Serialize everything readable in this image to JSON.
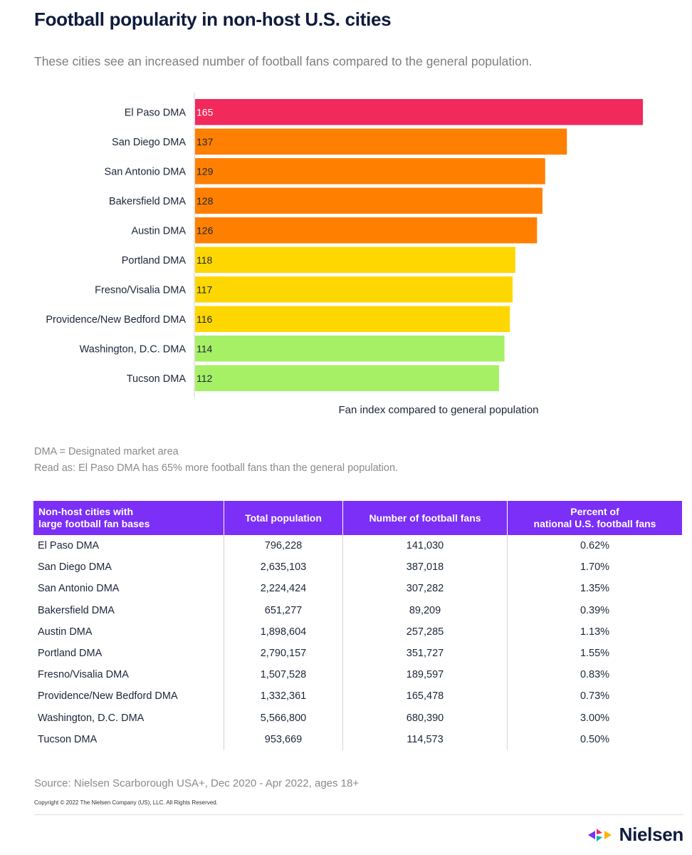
{
  "title": "Football popularity in non-host U.S. cities",
  "subtitle": "These cities see an increased number of football fans compared to the general population.",
  "chart_data": {
    "type": "bar",
    "orientation": "horizontal",
    "categories": [
      "El Paso DMA",
      "San Diego DMA",
      "San Antonio DMA",
      "Bakersfield DMA",
      "Austin DMA",
      "Portland DMA",
      "Fresno/Visalia DMA",
      "Providence/New Bedford DMA",
      "Washington, D.C. DMA",
      "Tucson DMA"
    ],
    "values": [
      165,
      137,
      129,
      128,
      126,
      118,
      117,
      116,
      114,
      112
    ],
    "bar_colors": [
      "#f2295b",
      "#ff7f00",
      "#ff7f00",
      "#ff7f00",
      "#ff7f00",
      "#ffd700",
      "#ffd700",
      "#ffd700",
      "#a6f066",
      "#a6f066"
    ],
    "label_colors": [
      "#ffffff",
      "#1c2638",
      "#1c2638",
      "#1c2638",
      "#1c2638",
      "#1c2638",
      "#1c2638",
      "#1c2638",
      "#1c2638",
      "#1c2638"
    ],
    "xlabel": "Fan index compared to general population",
    "ylabel": "",
    "xlim": [
      0,
      165
    ],
    "grid": false,
    "legend": "none"
  },
  "notes": {
    "dma": "DMA = Designated market area",
    "read_as": "Read as: El Paso DMA has 65% more football fans than the general population."
  },
  "table": {
    "headers": [
      [
        "Non-host cities with",
        "large football fan bases"
      ],
      [
        "Total population"
      ],
      [
        "Number of football fans"
      ],
      [
        "Percent of",
        "national U.S. football fans"
      ]
    ],
    "rows": [
      [
        "El Paso DMA",
        "796,228",
        "141,030",
        "0.62%"
      ],
      [
        "San Diego DMA",
        "2,635,103",
        "387,018",
        "1.70%"
      ],
      [
        "San Antonio DMA",
        "2,224,424",
        "307,282",
        "1.35%"
      ],
      [
        "Bakersfield DMA",
        "651,277",
        "89,209",
        "0.39%"
      ],
      [
        "Austin DMA",
        "1,898,604",
        "257,285",
        "1.13%"
      ],
      [
        "Portland DMA",
        "2,790,157",
        "351,727",
        "1.55%"
      ],
      [
        "Fresno/Visalia DMA",
        "1,507,528",
        "189,597",
        "0.83%"
      ],
      [
        "Providence/New Bedford DMA",
        "1,332,361",
        "165,478",
        "0.73%"
      ],
      [
        "Washington, D.C. DMA",
        "5,566,800",
        "680,390",
        "3.00%"
      ],
      [
        "Tucson DMA",
        "953,669",
        "114,573",
        "0.50%"
      ]
    ]
  },
  "source": "Source: Nielsen Scarborough USA+, Dec 2020 - Apr 2022, ages 18+",
  "copyright": "Copyright © 2022 The Nielsen Company (US), LLC. All Rights Reserved.",
  "logo": {
    "text": "Nielsen",
    "icon": "nielsen-logo-icon"
  }
}
